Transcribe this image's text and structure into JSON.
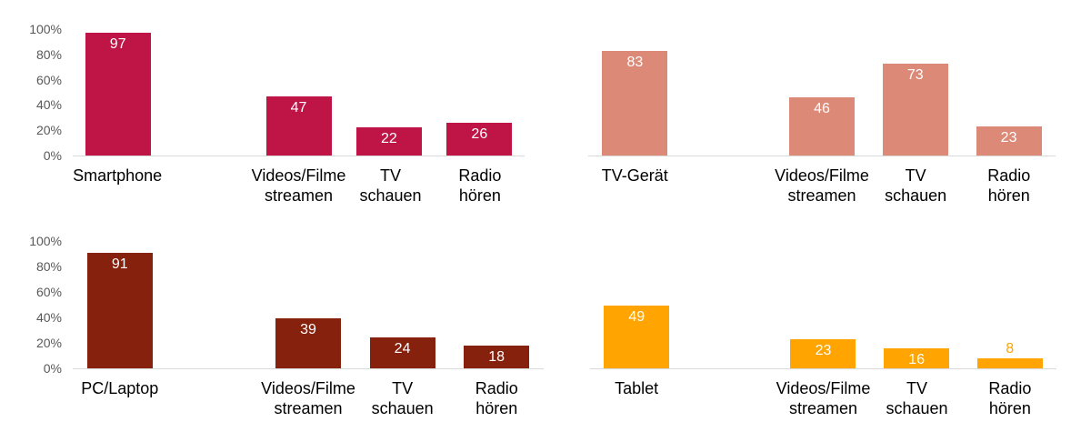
{
  "page": {
    "background_color": "#FFFFFF"
  },
  "styles": {
    "axis_line_color": "#D9D9D9",
    "tick_label_color": "#595959",
    "data_label_color": "#FFFFFF",
    "category_label_color": "#000000"
  },
  "chart_data": [
    {
      "id": "smartphone",
      "type": "bar",
      "position": "top-left",
      "bar_color": "#BE1446",
      "y_axis": {
        "visible": true,
        "range": [
          0,
          100
        ],
        "ticks": [
          "0%",
          "20%",
          "40%",
          "60%",
          "80%",
          "100%"
        ]
      },
      "grid": false,
      "legend": false,
      "categories": [
        "Smartphone",
        "Videos/Filme\nstreamen",
        "TV\nschauen",
        "Radio\nhören"
      ],
      "values": [
        97,
        47,
        22,
        26
      ]
    },
    {
      "id": "tv-geraet",
      "type": "bar",
      "position": "top-right",
      "bar_color": "#DD8977",
      "y_axis": {
        "visible": false,
        "range": [
          0,
          100
        ],
        "ticks": []
      },
      "grid": false,
      "legend": false,
      "categories": [
        "TV-Gerät",
        "Videos/Filme\nstreamen",
        "TV\nschauen",
        "Radio\nhören"
      ],
      "values": [
        83,
        46,
        73,
        23
      ]
    },
    {
      "id": "pc-laptop",
      "type": "bar",
      "position": "bottom-left",
      "bar_color": "#86210E",
      "y_axis": {
        "visible": true,
        "range": [
          0,
          100
        ],
        "ticks": [
          "0%",
          "20%",
          "40%",
          "60%",
          "80%",
          "100%"
        ]
      },
      "grid": false,
      "legend": false,
      "categories": [
        "PC/Laptop",
        "Videos/Filme\nstreamen",
        "TV\nschauen",
        "Radio\nhören"
      ],
      "values": [
        91,
        39,
        24,
        18
      ]
    },
    {
      "id": "tablet",
      "type": "bar",
      "position": "bottom-right",
      "bar_color": "#FFA400",
      "y_axis": {
        "visible": false,
        "range": [
          0,
          100
        ],
        "ticks": []
      },
      "grid": false,
      "legend": false,
      "categories": [
        "Tablet",
        "Videos/Filme\nstreamen",
        "TV\nschauen",
        "Radio\nhören"
      ],
      "values": [
        49,
        23,
        16,
        8
      ]
    }
  ]
}
